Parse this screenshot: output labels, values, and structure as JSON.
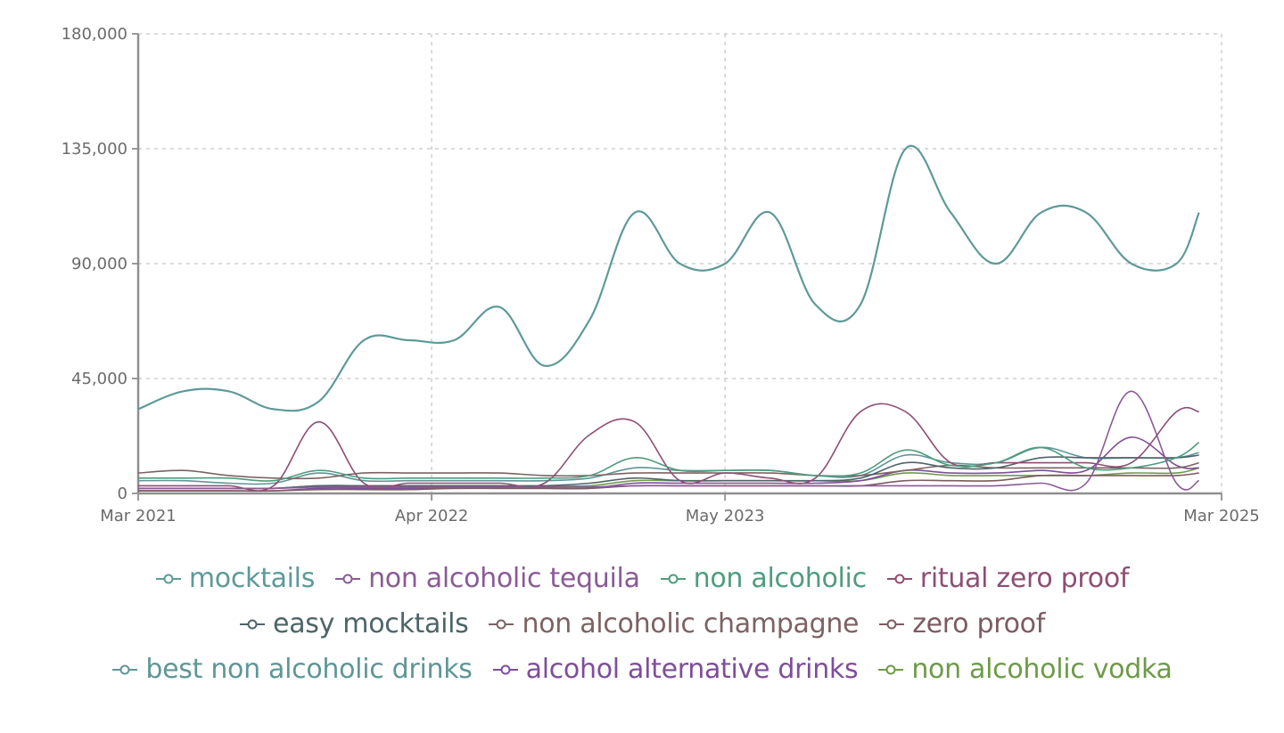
{
  "chart_data": {
    "type": "line",
    "x_axis": {
      "type": "date",
      "range": [
        "2021-03",
        "2025-03"
      ],
      "ticks": [
        {
          "date": "2021-03",
          "label": "Mar 2021"
        },
        {
          "date": "2022-04",
          "label": "Apr 2022"
        },
        {
          "date": "2023-05",
          "label": "May 2023"
        },
        {
          "date": "2025-03",
          "label": "Mar 2025"
        }
      ]
    },
    "y_axis": {
      "range": [
        0,
        180000
      ],
      "ticks": [
        {
          "value": 0,
          "label": "0"
        },
        {
          "value": 45000,
          "label": "45,000"
        },
        {
          "value": 90000,
          "label": "90,000"
        },
        {
          "value": 135000,
          "label": "135,000"
        },
        {
          "value": 180000,
          "label": "180,000"
        }
      ]
    },
    "grid": true,
    "legend_position": "bottom",
    "x": [
      "2021-03",
      "2021-05",
      "2021-07",
      "2021-09",
      "2021-11",
      "2022-01",
      "2022-03",
      "2022-05",
      "2022-07",
      "2022-09",
      "2022-11",
      "2023-01",
      "2023-03",
      "2023-05",
      "2023-07",
      "2023-09",
      "2023-11",
      "2024-01",
      "2024-03",
      "2024-05",
      "2024-07",
      "2024-09",
      "2024-11",
      "2025-01",
      "2025-02"
    ],
    "series": [
      {
        "name": "mocktails",
        "color": "#5e9a98",
        "values": [
          33000,
          40000,
          40000,
          33000,
          36000,
          60000,
          60000,
          60000,
          73000,
          50000,
          68000,
          110000,
          90000,
          90000,
          110000,
          74000,
          74000,
          135000,
          110000,
          90000,
          110000,
          110000,
          90000,
          90000,
          110000
        ]
      },
      {
        "name": "non alcoholic tequila",
        "color": "#8a5a96",
        "values": [
          2000,
          2000,
          2000,
          2000,
          2500,
          2500,
          2500,
          2500,
          2500,
          2500,
          2500,
          3000,
          3000,
          3000,
          3000,
          3000,
          3000,
          3000,
          3000,
          3000,
          4000,
          4000,
          40000,
          4000,
          5000
        ]
      },
      {
        "name": "non alcoholic",
        "color": "#4e9c7e",
        "values": [
          6000,
          6000,
          6000,
          5000,
          9000,
          6000,
          6000,
          6000,
          6000,
          6000,
          7000,
          14000,
          9000,
          9000,
          9000,
          7000,
          8000,
          17000,
          11000,
          12000,
          18000,
          10000,
          10000,
          14000,
          20000
        ]
      },
      {
        "name": "ritual zero proof",
        "color": "#8e4e74",
        "values": [
          3000,
          3000,
          3000,
          3000,
          28000,
          4000,
          4000,
          4000,
          4000,
          4000,
          23000,
          28000,
          5000,
          8000,
          6000,
          6000,
          32000,
          32000,
          12000,
          12000,
          12000,
          12000,
          12000,
          32000,
          32000
        ]
      },
      {
        "name": "easy mocktails",
        "color": "#4d6469",
        "values": [
          2000,
          2000,
          2000,
          2000,
          3000,
          3000,
          3000,
          3000,
          3000,
          3000,
          4000,
          6000,
          5000,
          5000,
          5000,
          5000,
          6000,
          12000,
          10000,
          10000,
          14000,
          14000,
          14000,
          14000,
          15000
        ]
      },
      {
        "name": "non alcoholic champagne",
        "color": "#7d6262",
        "values": [
          8000,
          9000,
          7000,
          6000,
          6000,
          8000,
          8000,
          8000,
          8000,
          7000,
          7000,
          8000,
          8000,
          8000,
          8000,
          7000,
          7000,
          9000,
          11000,
          10000,
          10000,
          10000,
          10000,
          10000,
          12000
        ]
      },
      {
        "name": "zero proof",
        "color": "#7e5a62",
        "values": [
          1000,
          1000,
          1000,
          1000,
          1500,
          1500,
          1500,
          2000,
          2000,
          2000,
          2000,
          3000,
          3000,
          3000,
          3000,
          3000,
          3000,
          5000,
          5000,
          5000,
          7000,
          7000,
          7000,
          7000,
          8000
        ]
      },
      {
        "name": "best non alcoholic drinks",
        "color": "#5f9696",
        "values": [
          5000,
          5000,
          4000,
          4000,
          8000,
          5000,
          5000,
          5000,
          5000,
          5000,
          6000,
          10000,
          9000,
          9000,
          9000,
          7000,
          7000,
          15000,
          12000,
          12000,
          18000,
          14000,
          14000,
          14000,
          16000
        ]
      },
      {
        "name": "alcohol alternative drinks",
        "color": "#7e4e9a",
        "values": [
          1000,
          1000,
          1000,
          1000,
          2000,
          2000,
          2000,
          2000,
          2000,
          2000,
          2000,
          4000,
          4000,
          4000,
          4000,
          4000,
          5000,
          9000,
          8000,
          8000,
          9000,
          9000,
          22000,
          11000,
          10000
        ]
      },
      {
        "name": "non alcoholic vodka",
        "color": "#6e9a48",
        "values": [
          2000,
          2000,
          2000,
          2000,
          3000,
          3000,
          3000,
          3000,
          3000,
          3000,
          3000,
          5000,
          5000,
          5000,
          5000,
          5000,
          5000,
          8000,
          7000,
          7000,
          7000,
          7000,
          8000,
          8000,
          10000
        ]
      }
    ],
    "legend_rows": [
      [
        0,
        1,
        2,
        3
      ],
      [
        4,
        5,
        6
      ],
      [
        7,
        8,
        9
      ]
    ]
  }
}
